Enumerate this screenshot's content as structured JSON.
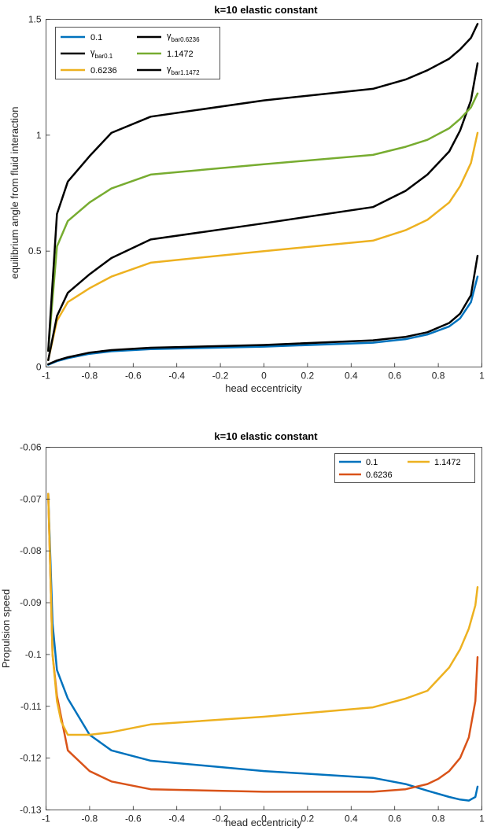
{
  "chart_data": [
    {
      "type": "line",
      "title": "k=10 elastic constant",
      "xlabel": "head eccentricity",
      "ylabel": "equilibrium angle from fluid interaction",
      "xlim": [
        -1,
        1
      ],
      "ylim": [
        0,
        1.5
      ],
      "xticks": [
        "-1",
        "-0.8",
        "-0.6",
        "-0.4",
        "-0.2",
        "0",
        "0.2",
        "0.4",
        "0.6",
        "0.8",
        "1"
      ],
      "xtick_values": [
        -1,
        -0.8,
        -0.6,
        -0.4,
        -0.2,
        0,
        0.2,
        0.4,
        0.6,
        0.8,
        1
      ],
      "yticks": [
        "0",
        "0.5",
        "1",
        "1.5"
      ],
      "ytick_values": [
        0,
        0.5,
        1,
        1.5
      ],
      "grid": false,
      "legend_position": "top-left",
      "legend_columns": 2,
      "x": [
        -0.99,
        -0.95,
        -0.9,
        -0.8,
        -0.7,
        -0.52,
        0,
        0.5,
        0.65,
        0.75,
        0.85,
        0.9,
        0.95,
        0.98
      ],
      "series": [
        {
          "name": "0.1",
          "name_sub": "",
          "color": "#0072BD",
          "values": [
            0.01,
            0.025,
            0.038,
            0.057,
            0.068,
            0.077,
            0.088,
            0.105,
            0.12,
            0.14,
            0.175,
            0.21,
            0.28,
            0.39
          ]
        },
        {
          "name": "γ",
          "name_sub": "bar0.1",
          "color": "#000000",
          "values": [
            0.012,
            0.028,
            0.042,
            0.062,
            0.073,
            0.083,
            0.095,
            0.115,
            0.13,
            0.15,
            0.19,
            0.23,
            0.31,
            0.48
          ]
        },
        {
          "name": "0.6236",
          "name_sub": "",
          "color": "#EDB120",
          "values": [
            0.03,
            0.2,
            0.28,
            0.34,
            0.39,
            0.45,
            0.5,
            0.545,
            0.59,
            0.635,
            0.71,
            0.78,
            0.88,
            1.01
          ]
        },
        {
          "name": "γ",
          "name_sub": "bar0.6236",
          "color": "#000000",
          "values": [
            0.03,
            0.22,
            0.32,
            0.4,
            0.47,
            0.55,
            0.62,
            0.69,
            0.76,
            0.83,
            0.93,
            1.02,
            1.15,
            1.31
          ]
        },
        {
          "name": "1.1472",
          "name_sub": "",
          "color": "#77AC30",
          "values": [
            0.07,
            0.52,
            0.63,
            0.71,
            0.77,
            0.83,
            0.875,
            0.915,
            0.95,
            0.98,
            1.03,
            1.07,
            1.12,
            1.18
          ]
        },
        {
          "name": "γ",
          "name_sub": "bar1.1472",
          "color": "#000000",
          "values": [
            0.07,
            0.66,
            0.8,
            0.91,
            1.01,
            1.08,
            1.15,
            1.2,
            1.24,
            1.28,
            1.33,
            1.37,
            1.42,
            1.48
          ]
        }
      ]
    },
    {
      "type": "line",
      "title": "k=10 elastic constant",
      "xlabel": "head eccentricity",
      "ylabel": "Propulsion speed",
      "xlim": [
        -1,
        1
      ],
      "ylim": [
        -0.13,
        -0.06
      ],
      "xticks": [
        "-1",
        "-0.8",
        "-0.6",
        "-0.4",
        "-0.2",
        "0",
        "0.2",
        "0.4",
        "0.6",
        "0.8",
        "1"
      ],
      "xtick_values": [
        -1,
        -0.8,
        -0.6,
        -0.4,
        -0.2,
        0,
        0.2,
        0.4,
        0.6,
        0.8,
        1
      ],
      "yticks": [
        "-0.13",
        "-0.12",
        "-0.11",
        "-0.1",
        "-0.09",
        "-0.08",
        "-0.07",
        "-0.06"
      ],
      "ytick_values": [
        -0.13,
        -0.12,
        -0.11,
        -0.1,
        -0.09,
        -0.08,
        -0.07,
        -0.06
      ],
      "grid": false,
      "legend_position": "top-right",
      "legend_columns": 2,
      "series": [
        {
          "name": "0.1",
          "color": "#0072BD",
          "x": [
            -0.99,
            -0.97,
            -0.95,
            -0.9,
            -0.8,
            -0.7,
            -0.52,
            0,
            0.5,
            0.65,
            0.75,
            0.85,
            0.9,
            0.94,
            0.97,
            0.98
          ],
          "values": [
            -0.069,
            -0.094,
            -0.103,
            -0.1085,
            -0.1155,
            -0.1185,
            -0.1205,
            -0.1225,
            -0.1238,
            -0.125,
            -0.1263,
            -0.1275,
            -0.128,
            -0.1282,
            -0.1275,
            -0.1255
          ]
        },
        {
          "name": "0.6236",
          "color": "#D95319",
          "x": [
            -0.99,
            -0.97,
            -0.95,
            -0.9,
            -0.8,
            -0.7,
            -0.52,
            0,
            0.5,
            0.65,
            0.75,
            0.8,
            0.85,
            0.9,
            0.94,
            0.97,
            0.98
          ],
          "values": [
            -0.069,
            -0.1,
            -0.108,
            -0.1185,
            -0.1225,
            -0.1245,
            -0.126,
            -0.1265,
            -0.1265,
            -0.126,
            -0.125,
            -0.124,
            -0.1225,
            -0.12,
            -0.116,
            -0.109,
            -0.1005
          ]
        },
        {
          "name": "1.1472",
          "color": "#EDB120",
          "x": [
            -0.99,
            -0.97,
            -0.95,
            -0.93,
            -0.9,
            -0.8,
            -0.7,
            -0.52,
            0,
            0.5,
            0.65,
            0.75,
            0.85,
            0.9,
            0.94,
            0.97,
            0.98
          ],
          "values": [
            -0.069,
            -0.1,
            -0.109,
            -0.113,
            -0.1155,
            -0.1155,
            -0.115,
            -0.1135,
            -0.112,
            -0.1102,
            -0.1085,
            -0.107,
            -0.1025,
            -0.099,
            -0.095,
            -0.0905,
            -0.087
          ]
        }
      ]
    }
  ]
}
